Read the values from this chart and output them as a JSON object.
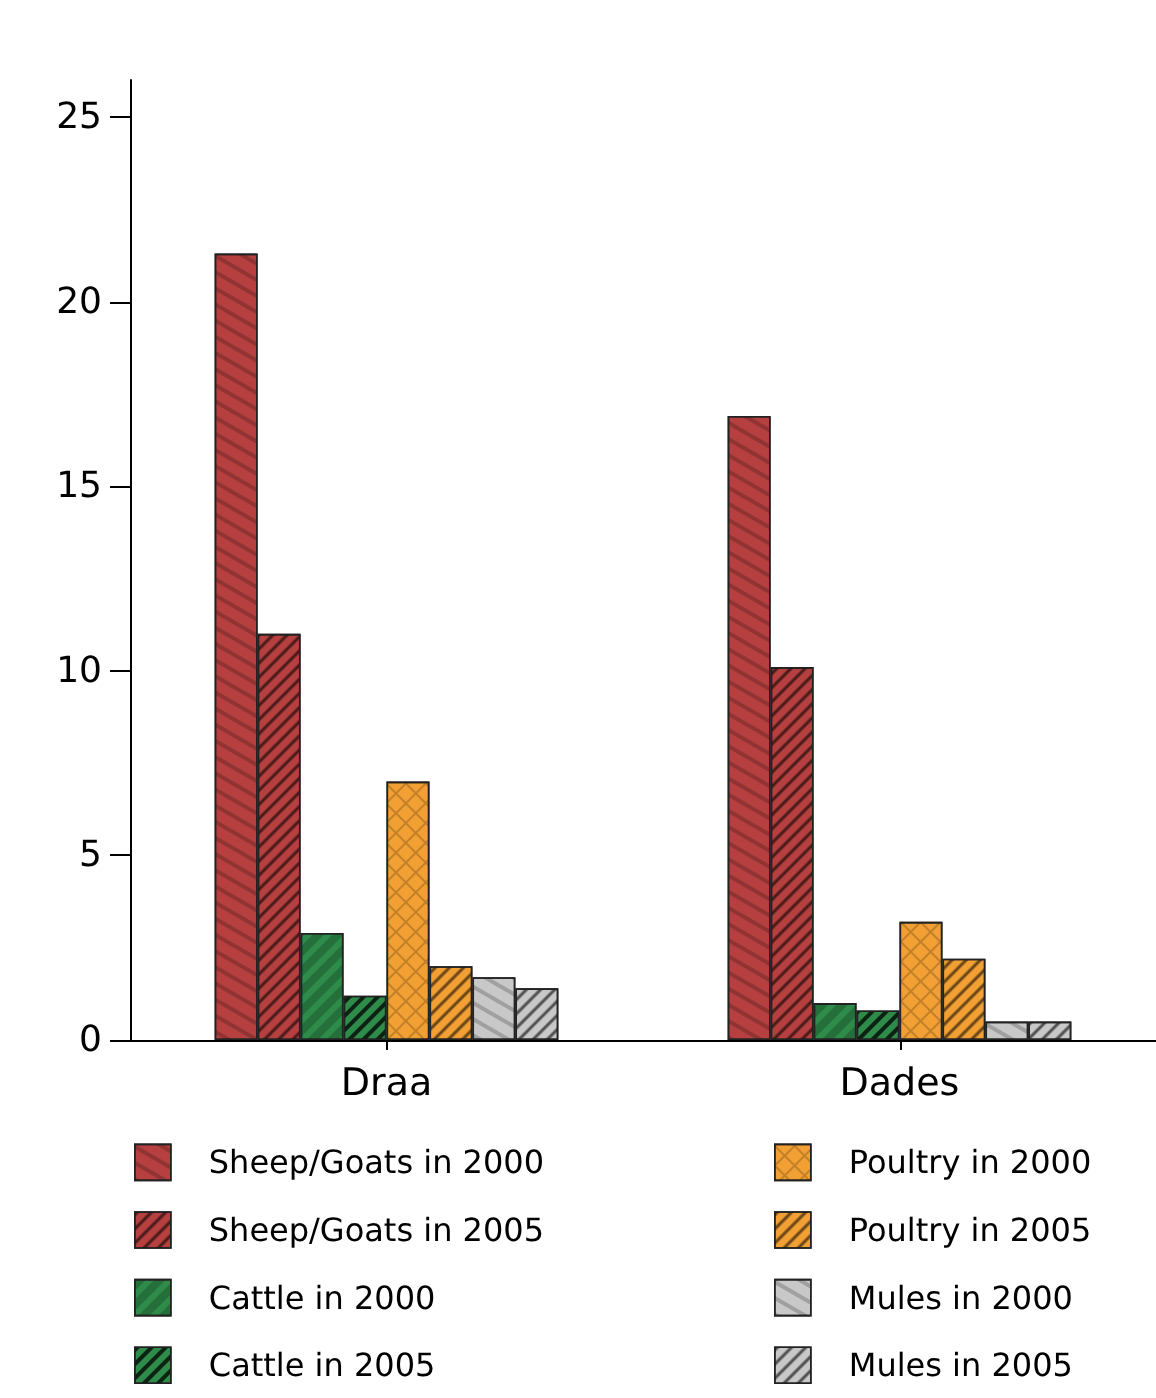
{
  "chart_data": {
    "type": "bar",
    "categories": [
      "Draa",
      "Dades"
    ],
    "series": [
      {
        "name": "Sheep/Goats in 2000",
        "color": "#b5403f",
        "values": [
          21.3,
          16.9
        ]
      },
      {
        "name": "Sheep/Goats in 2005",
        "color": "#b5403f",
        "values": [
          11.0,
          10.1
        ]
      },
      {
        "name": "Cattle in 2000",
        "color": "#2e8b4a",
        "values": [
          2.9,
          1.0
        ]
      },
      {
        "name": "Cattle in 2005",
        "color": "#2e8b4a",
        "values": [
          1.2,
          0.8
        ]
      },
      {
        "name": "Poultry in 2000",
        "color": "#f2a033",
        "values": [
          7.0,
          3.2
        ]
      },
      {
        "name": "Poultry in 2005",
        "color": "#f2a033",
        "values": [
          2.0,
          2.2
        ]
      },
      {
        "name": "Mules in 2000",
        "color": "#c8c8c8",
        "values": [
          1.7,
          0.5
        ]
      },
      {
        "name": "Mules in 2005",
        "color": "#c8c8c8",
        "values": [
          1.4,
          0.5
        ]
      }
    ],
    "ylim": [
      0,
      26
    ],
    "yticks": [
      0,
      5,
      10,
      15,
      20,
      25
    ],
    "grid": false,
    "legend": "bottom"
  }
}
